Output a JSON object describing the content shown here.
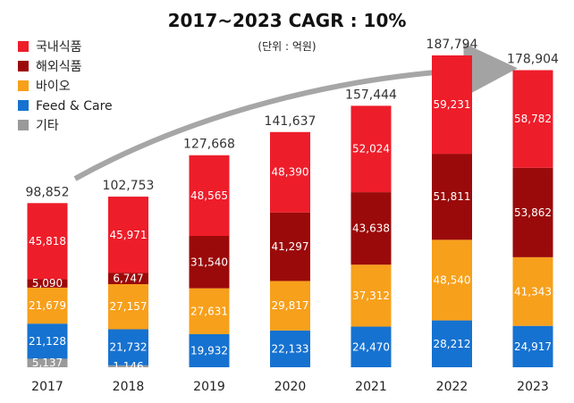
{
  "chart_data": {
    "type": "bar",
    "stacked": true,
    "title": "2017~2023 CAGR : 10%",
    "subtitle": "(단위 : 억원)",
    "categories": [
      "2017",
      "2018",
      "2019",
      "2020",
      "2021",
      "2022",
      "2023"
    ],
    "totals": [
      "98,852",
      "102,753",
      "127,668",
      "141,637",
      "157,444",
      "187,794",
      "178,904"
    ],
    "legend_placement": "top-left",
    "grid": false,
    "ylim": [
      0,
      200000
    ],
    "series": [
      {
        "name": "국내식품",
        "color": "#ee1d2a",
        "values": [
          45818,
          45971,
          48565,
          48390,
          52024,
          59231,
          58782
        ],
        "labels": [
          "45,818",
          "45,971",
          "48,565",
          "48,390",
          "52,024",
          "59,231",
          "58,782"
        ]
      },
      {
        "name": "해외식품",
        "color": "#9b0a0a",
        "values": [
          5090,
          6747,
          31540,
          41297,
          43638,
          51811,
          53862
        ],
        "labels": [
          "5,090",
          "6,747",
          "31,540",
          "41,297",
          "43,638",
          "51,811",
          "53,862"
        ]
      },
      {
        "name": "바이오",
        "color": "#f7a01b",
        "values": [
          21679,
          27157,
          27631,
          29817,
          37312,
          48540,
          41343
        ],
        "labels": [
          "21,679",
          "27,157",
          "27,631",
          "29,817",
          "37,312",
          "48,540",
          "41,343"
        ]
      },
      {
        "name": "Feed & Care",
        "color": "#1672d0",
        "values": [
          21128,
          21732,
          19932,
          22133,
          24470,
          28212,
          24917
        ],
        "labels": [
          "21,128",
          "21,732",
          "19,932",
          "22,133",
          "24,470",
          "28,212",
          "24,917"
        ]
      },
      {
        "name": "기타",
        "color": "#9a9a9a",
        "values": [
          5137,
          1146,
          0,
          0,
          0,
          0,
          0
        ],
        "labels": [
          "5,137",
          "1,146",
          "",
          "",
          "",
          "",
          ""
        ]
      }
    ]
  }
}
